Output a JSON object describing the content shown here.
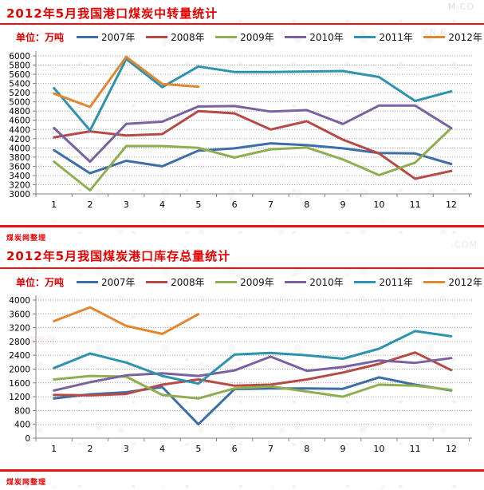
{
  "page": {
    "source_note": "煤炭网整理",
    "accent_red": "#ee1111",
    "watermark_fragments": {
      "f1": "M.CO",
      "f2": "CN.C",
      "f3": ".COM",
      "f4": "煤炭网"
    }
  },
  "chart_data": [
    {
      "type": "line",
      "title": "2012年5月我国港口煤炭中转量统计",
      "unit_label": "单位：万吨",
      "xlabel": "",
      "ylabel": "万吨",
      "legend_position": "top",
      "grid": true,
      "categories": [
        "1",
        "2",
        "3",
        "4",
        "5",
        "6",
        "7",
        "8",
        "9",
        "10",
        "11",
        "12"
      ],
      "y_axis": {
        "min": 3000,
        "max": 6000,
        "step": 200
      },
      "series": [
        {
          "name": "2007年",
          "color": "#3d6ea8",
          "values": [
            3950,
            3450,
            3720,
            3600,
            3940,
            3990,
            4100,
            4060,
            3990,
            3890,
            3880,
            3650
          ]
        },
        {
          "name": "2008年",
          "color": "#b64a45",
          "values": [
            4230,
            4360,
            4270,
            4300,
            4800,
            4750,
            4400,
            4580,
            4180,
            3880,
            3330,
            3500
          ]
        },
        {
          "name": "2009年",
          "color": "#8fae52",
          "values": [
            3700,
            3080,
            4040,
            4040,
            4000,
            3790,
            3970,
            4010,
            3750,
            3410,
            3680,
            4430
          ]
        },
        {
          "name": "2010年",
          "color": "#7a62a0",
          "values": [
            4430,
            3700,
            4520,
            4570,
            4900,
            4910,
            4790,
            4820,
            4520,
            4920,
            4920,
            4430
          ]
        },
        {
          "name": "2011年",
          "color": "#2e93ae",
          "values": [
            5300,
            4380,
            5930,
            5320,
            5770,
            5650,
            5650,
            5660,
            5670,
            5540,
            5020,
            5230
          ]
        },
        {
          "name": "2012年",
          "color": "#e2862f",
          "values": [
            5180,
            4890,
            5980,
            5390,
            5330
          ]
        }
      ]
    },
    {
      "type": "line",
      "title": "2012年5月我国煤炭港口库存总量统计",
      "unit_label": "单位：万吨",
      "xlabel": "",
      "ylabel": "万吨",
      "legend_position": "top",
      "grid": true,
      "categories": [
        "1",
        "2",
        "3",
        "4",
        "5",
        "6",
        "7",
        "8",
        "9",
        "10",
        "11",
        "12"
      ],
      "y_axis": {
        "min": 0,
        "max": 4000,
        "step": 400
      },
      "series": [
        {
          "name": "2007年",
          "color": "#3d6ea8",
          "values": [
            1150,
            1270,
            1330,
            1480,
            400,
            1420,
            1440,
            1440,
            1430,
            1760,
            1550,
            1380
          ]
        },
        {
          "name": "2008年",
          "color": "#b64a45",
          "values": [
            1250,
            1240,
            1280,
            1550,
            1700,
            1520,
            1550,
            1700,
            1900,
            2150,
            2480,
            1970
          ]
        },
        {
          "name": "2009年",
          "color": "#8fae52",
          "values": [
            1700,
            1800,
            1780,
            1250,
            1150,
            1440,
            1500,
            1350,
            1200,
            1550,
            1520,
            1400
          ]
        },
        {
          "name": "2010年",
          "color": "#7a62a0",
          "values": [
            1380,
            1620,
            1820,
            1880,
            1800,
            1960,
            2360,
            1950,
            2060,
            2250,
            2180,
            2320
          ]
        },
        {
          "name": "2011年",
          "color": "#2e93ae",
          "values": [
            2030,
            2450,
            2190,
            1800,
            1580,
            2420,
            2470,
            2400,
            2300,
            2590,
            3100,
            2950
          ]
        },
        {
          "name": "2012年",
          "color": "#e2862f",
          "values": [
            3390,
            3790,
            3250,
            3020,
            3590
          ]
        }
      ]
    }
  ]
}
